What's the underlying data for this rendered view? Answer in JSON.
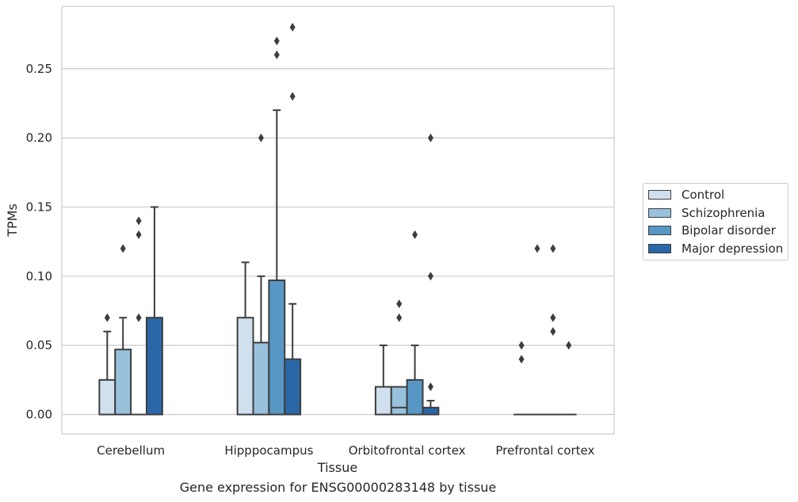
{
  "chart_data": {
    "type": "box",
    "xlabel": "Tissue",
    "ylabel": "TPMs",
    "ylim": [
      -0.014,
      0.294
    ],
    "yticks": [
      0.0,
      0.05,
      0.1,
      0.15,
      0.2,
      0.25
    ],
    "ytick_labels": [
      "0.00",
      "0.05",
      "0.10",
      "0.15",
      "0.20",
      "0.25"
    ],
    "grid": true,
    "legend_position": "right",
    "categories": [
      "Cerebellum",
      "Hipppocampus",
      "Orbitofrontal cortex",
      "Prefrontal cortex"
    ],
    "series": [
      {
        "name": "Control",
        "color": "#d1e0ef"
      },
      {
        "name": "Schizophrenia",
        "color": "#98c1dc"
      },
      {
        "name": "Bipolar disorder",
        "color": "#5897c5"
      },
      {
        "name": "Major depression",
        "color": "#2a67a6"
      }
    ],
    "boxes": [
      [
        {
          "q1": 0,
          "median": 0,
          "q3": 0.025,
          "whislo": 0,
          "whishi": 0.06,
          "fliers": [
            0.07
          ]
        },
        {
          "q1": 0,
          "median": 0,
          "q3": 0.047,
          "whislo": 0,
          "whishi": 0.07,
          "fliers": [
            0.12
          ]
        },
        {
          "q1": 0,
          "median": 0,
          "q3": 0,
          "whislo": 0,
          "whishi": 0,
          "fliers": [
            0.07,
            0.13,
            0.14
          ]
        },
        {
          "q1": 0,
          "median": 0,
          "q3": 0.07,
          "whislo": 0,
          "whishi": 0.15,
          "fliers": []
        }
      ],
      [
        {
          "q1": 0,
          "median": 0,
          "q3": 0.07,
          "whislo": 0,
          "whishi": 0.11,
          "fliers": []
        },
        {
          "q1": 0,
          "median": 0,
          "q3": 0.052,
          "whislo": 0,
          "whishi": 0.1,
          "fliers": [
            0.2
          ]
        },
        {
          "q1": 0,
          "median": 0,
          "q3": 0.097,
          "whislo": 0,
          "whishi": 0.22,
          "fliers": [
            0.26,
            0.27
          ]
        },
        {
          "q1": 0,
          "median": 0,
          "q3": 0.04,
          "whislo": 0,
          "whishi": 0.08,
          "fliers": [
            0.23,
            0.28
          ]
        }
      ],
      [
        {
          "q1": 0,
          "median": 0,
          "q3": 0.02,
          "whislo": 0,
          "whishi": 0.05,
          "fliers": []
        },
        {
          "q1": 0,
          "median": 0.005,
          "q3": 0.02,
          "whislo": 0,
          "whishi": 0.02,
          "fliers": [
            0.07,
            0.08
          ]
        },
        {
          "q1": 0,
          "median": 0,
          "q3": 0.025,
          "whislo": 0,
          "whishi": 0.05,
          "fliers": [
            0.13
          ]
        },
        {
          "q1": 0,
          "median": 0,
          "q3": 0.005,
          "whislo": 0,
          "whishi": 0.01,
          "fliers": [
            0.02,
            0.1,
            0.2
          ]
        }
      ],
      [
        {
          "q1": 0,
          "median": 0,
          "q3": 0,
          "whislo": 0,
          "whishi": 0,
          "fliers": [
            0.04,
            0.05
          ]
        },
        {
          "q1": 0,
          "median": 0,
          "q3": 0,
          "whislo": 0,
          "whishi": 0,
          "fliers": [
            0.12
          ]
        },
        {
          "q1": 0,
          "median": 0,
          "q3": 0,
          "whislo": 0,
          "whishi": 0,
          "fliers": [
            0.06,
            0.07,
            0.12
          ]
        },
        {
          "q1": 0,
          "median": 0,
          "q3": 0,
          "whislo": 0,
          "whishi": 0,
          "fliers": [
            0.05
          ]
        }
      ]
    ]
  },
  "caption": "Gene expression for ENSG00000283148 by tissue"
}
